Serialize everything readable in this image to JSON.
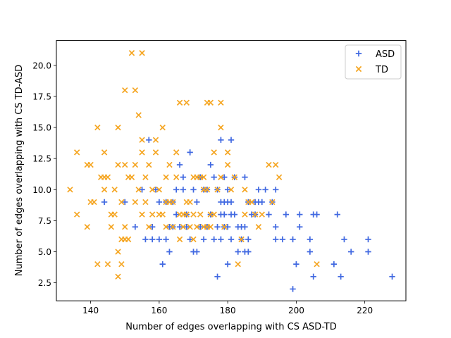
{
  "chart_data": {
    "type": "scatter",
    "title": "",
    "xlabel": "Number of edges overlapping with CS ASD-TD",
    "ylabel": "Number of edges overlapping with CS TD-ASD",
    "xlim": [
      130,
      232
    ],
    "ylim": [
      1.05,
      22.0
    ],
    "xticks": [
      140,
      160,
      180,
      200,
      220
    ],
    "yticks": [
      2.5,
      5.0,
      7.5,
      10.0,
      12.5,
      15.0,
      17.5,
      20.0
    ],
    "xtick_labels": [
      "140",
      "160",
      "180",
      "200",
      "220"
    ],
    "ytick_labels": [
      "2.5",
      "5.0",
      "7.5",
      "10.0",
      "12.5",
      "15.0",
      "17.5",
      "20.0"
    ],
    "legend_position": "top-right",
    "series": [
      {
        "name": "ASD",
        "marker": "plus",
        "color": "#4169e1",
        "points": [
          [
            144,
            9
          ],
          [
            150,
            9
          ],
          [
            153,
            7
          ],
          [
            155,
            10
          ],
          [
            156,
            6
          ],
          [
            157,
            14
          ],
          [
            158,
            7
          ],
          [
            158,
            6
          ],
          [
            159,
            10
          ],
          [
            160,
            9
          ],
          [
            160,
            6
          ],
          [
            161,
            4
          ],
          [
            162,
            6
          ],
          [
            162,
            9
          ],
          [
            163,
            5
          ],
          [
            163,
            7
          ],
          [
            164,
            9
          ],
          [
            164,
            7
          ],
          [
            165,
            8
          ],
          [
            165,
            10
          ],
          [
            166,
            7
          ],
          [
            166,
            12
          ],
          [
            167,
            10
          ],
          [
            167,
            11
          ],
          [
            168,
            7
          ],
          [
            168,
            8
          ],
          [
            169,
            13
          ],
          [
            169,
            6
          ],
          [
            170,
            10
          ],
          [
            170,
            5
          ],
          [
            171,
            9
          ],
          [
            171,
            5
          ],
          [
            172,
            7
          ],
          [
            172,
            11
          ],
          [
            173,
            6
          ],
          [
            173,
            10
          ],
          [
            174,
            7
          ],
          [
            174,
            10
          ],
          [
            175,
            12
          ],
          [
            175,
            8
          ],
          [
            176,
            6
          ],
          [
            176,
            11
          ],
          [
            177,
            3
          ],
          [
            177,
            10
          ],
          [
            177,
            7
          ],
          [
            178,
            9
          ],
          [
            178,
            14
          ],
          [
            178,
            6
          ],
          [
            178,
            8
          ],
          [
            179,
            11
          ],
          [
            179,
            7
          ],
          [
            179,
            9
          ],
          [
            179,
            8
          ],
          [
            180,
            9
          ],
          [
            180,
            4
          ],
          [
            180,
            7
          ],
          [
            180,
            10
          ],
          [
            181,
            14
          ],
          [
            181,
            8
          ],
          [
            181,
            9
          ],
          [
            181,
            6
          ],
          [
            182,
            11
          ],
          [
            182,
            8
          ],
          [
            183,
            7
          ],
          [
            183,
            5
          ],
          [
            184,
            7
          ],
          [
            184,
            6
          ],
          [
            185,
            5
          ],
          [
            185,
            7
          ],
          [
            185,
            11
          ],
          [
            186,
            6
          ],
          [
            186,
            5
          ],
          [
            186,
            9
          ],
          [
            187,
            8
          ],
          [
            188,
            9
          ],
          [
            188,
            8
          ],
          [
            189,
            10
          ],
          [
            189,
            9
          ],
          [
            190,
            9
          ],
          [
            191,
            10
          ],
          [
            192,
            8
          ],
          [
            193,
            9
          ],
          [
            194,
            10
          ],
          [
            194,
            7
          ],
          [
            194,
            6
          ],
          [
            196,
            6
          ],
          [
            197,
            8
          ],
          [
            199,
            6
          ],
          [
            199,
            2
          ],
          [
            200,
            4
          ],
          [
            201,
            8
          ],
          [
            201,
            7
          ],
          [
            204,
            6
          ],
          [
            204,
            5
          ],
          [
            205,
            3
          ],
          [
            205,
            8
          ],
          [
            206,
            8
          ],
          [
            211,
            4
          ],
          [
            212,
            8
          ],
          [
            213,
            3
          ],
          [
            214,
            6
          ],
          [
            216,
            5
          ],
          [
            221,
            6
          ],
          [
            221,
            5
          ],
          [
            228,
            3
          ]
        ]
      },
      {
        "name": "TD",
        "marker": "x",
        "color": "#f5a623",
        "points": [
          [
            134,
            10
          ],
          [
            136,
            13
          ],
          [
            136,
            8
          ],
          [
            139,
            12
          ],
          [
            139,
            7
          ],
          [
            140,
            12
          ],
          [
            140,
            9
          ],
          [
            141,
            9
          ],
          [
            142,
            15
          ],
          [
            142,
            4
          ],
          [
            143,
            11
          ],
          [
            144,
            13
          ],
          [
            144,
            11
          ],
          [
            144,
            10
          ],
          [
            145,
            4
          ],
          [
            145,
            11
          ],
          [
            146,
            7
          ],
          [
            146,
            8
          ],
          [
            147,
            8
          ],
          [
            147,
            10
          ],
          [
            148,
            15
          ],
          [
            148,
            12
          ],
          [
            148,
            5
          ],
          [
            148,
            3
          ],
          [
            149,
            9
          ],
          [
            149,
            6
          ],
          [
            149,
            4
          ],
          [
            150,
            18
          ],
          [
            150,
            12
          ],
          [
            150,
            7
          ],
          [
            150,
            6
          ],
          [
            151,
            6
          ],
          [
            151,
            11
          ],
          [
            152,
            21
          ],
          [
            152,
            11
          ],
          [
            153,
            18
          ],
          [
            153,
            12
          ],
          [
            153,
            9
          ],
          [
            154,
            16
          ],
          [
            154,
            10
          ],
          [
            155,
            21
          ],
          [
            155,
            14
          ],
          [
            155,
            13
          ],
          [
            155,
            8
          ],
          [
            156,
            11
          ],
          [
            156,
            9
          ],
          [
            157,
            12
          ],
          [
            157,
            7
          ],
          [
            158,
            10
          ],
          [
            158,
            8
          ],
          [
            159,
            14
          ],
          [
            159,
            13
          ],
          [
            160,
            10
          ],
          [
            160,
            8
          ],
          [
            161,
            15
          ],
          [
            161,
            8
          ],
          [
            162,
            11
          ],
          [
            162,
            9
          ],
          [
            162,
            7
          ],
          [
            163,
            12
          ],
          [
            163,
            9
          ],
          [
            164,
            9
          ],
          [
            164,
            7
          ],
          [
            165,
            13
          ],
          [
            165,
            11
          ],
          [
            166,
            17
          ],
          [
            166,
            8
          ],
          [
            166,
            6
          ],
          [
            167,
            8
          ],
          [
            167,
            7
          ],
          [
            168,
            17
          ],
          [
            168,
            9
          ],
          [
            168,
            8
          ],
          [
            169,
            9
          ],
          [
            169,
            7
          ],
          [
            170,
            11
          ],
          [
            170,
            8
          ],
          [
            170,
            6
          ],
          [
            171,
            11
          ],
          [
            171,
            7
          ],
          [
            172,
            11
          ],
          [
            172,
            8
          ],
          [
            173,
            11
          ],
          [
            173,
            10
          ],
          [
            173,
            7
          ],
          [
            174,
            17
          ],
          [
            174,
            10
          ],
          [
            174,
            7
          ],
          [
            175,
            17
          ],
          [
            175,
            8
          ],
          [
            175,
            7
          ],
          [
            176,
            8
          ],
          [
            176,
            13
          ],
          [
            177,
            10
          ],
          [
            178,
            17
          ],
          [
            178,
            15
          ],
          [
            178,
            11
          ],
          [
            179,
            7
          ],
          [
            180,
            13
          ],
          [
            180,
            12
          ],
          [
            181,
            10
          ],
          [
            182,
            11
          ],
          [
            183,
            4
          ],
          [
            184,
            6
          ],
          [
            185,
            10
          ],
          [
            185,
            8
          ],
          [
            186,
            9
          ],
          [
            187,
            9
          ],
          [
            188,
            8
          ],
          [
            189,
            7
          ],
          [
            190,
            8
          ],
          [
            192,
            12
          ],
          [
            193,
            9
          ],
          [
            194,
            12
          ],
          [
            195,
            11
          ],
          [
            206,
            4
          ]
        ]
      }
    ]
  }
}
